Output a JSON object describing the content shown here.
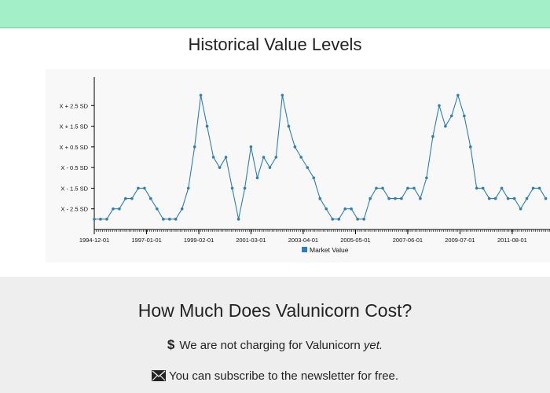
{
  "colors": {
    "topbar": "#a3f0c8",
    "series": "#2d7fb8",
    "gray_band": "#eeeeee"
  },
  "chart_section": {
    "title": "Historical Value Levels"
  },
  "chart_data": {
    "type": "line",
    "title": "Historical Value Levels",
    "y_tick_labels": [
      "X - 2.5 SD",
      "X - 1.5 SD",
      "X - 0.5 SD",
      "X + 0.5 SD",
      "X + 1.5 SD",
      "X + 2.5 SD"
    ],
    "y_tick_values": [
      -2.5,
      -1.5,
      -0.5,
      0.5,
      1.5,
      2.5
    ],
    "x_tick_labels": [
      "1994-12-01",
      "1997-01-01",
      "1999-02-01",
      "2001-03-01",
      "2003-04-01",
      "2005-05-01",
      "2007-06-01",
      "2009-07-01",
      "2011-08-01"
    ],
    "legend": [
      "Market Value"
    ],
    "legend_position": "bottom",
    "series": [
      {
        "name": "Market Value",
        "points": [
          [
            "1994-12-01",
            -3.0
          ],
          [
            "1995-03-01",
            -3.0
          ],
          [
            "1995-06-01",
            -3.0
          ],
          [
            "1995-09-01",
            -2.5
          ],
          [
            "1995-12-01",
            -2.5
          ],
          [
            "1996-03-01",
            -2.0
          ],
          [
            "1996-06-01",
            -2.0
          ],
          [
            "1996-09-01",
            -1.5
          ],
          [
            "1996-12-01",
            -1.5
          ],
          [
            "1997-03-01",
            -2.0
          ],
          [
            "1997-06-01",
            -2.5
          ],
          [
            "1997-09-01",
            -3.0
          ],
          [
            "1997-12-01",
            -3.0
          ],
          [
            "1998-03-01",
            -3.0
          ],
          [
            "1998-06-01",
            -2.5
          ],
          [
            "1998-09-01",
            -1.5
          ],
          [
            "1998-12-01",
            0.5
          ],
          [
            "1999-03-01",
            3.0
          ],
          [
            "1999-06-01",
            1.5
          ],
          [
            "1999-09-01",
            0.0
          ],
          [
            "1999-12-01",
            -0.5
          ],
          [
            "2000-03-01",
            0.0
          ],
          [
            "2000-06-01",
            -1.5
          ],
          [
            "2000-09-01",
            -3.0
          ],
          [
            "2000-12-01",
            -1.5
          ],
          [
            "2001-03-01",
            0.5
          ],
          [
            "2001-06-01",
            -1.0
          ],
          [
            "2001-09-01",
            0.0
          ],
          [
            "2001-12-01",
            -0.5
          ],
          [
            "2002-03-01",
            0.0
          ],
          [
            "2002-06-01",
            3.0
          ],
          [
            "2002-09-01",
            1.5
          ],
          [
            "2002-12-01",
            0.5
          ],
          [
            "2003-03-01",
            0.0
          ],
          [
            "2003-06-01",
            -0.5
          ],
          [
            "2003-09-01",
            -1.0
          ],
          [
            "2003-12-01",
            -2.0
          ],
          [
            "2004-03-01",
            -2.5
          ],
          [
            "2004-06-01",
            -3.0
          ],
          [
            "2004-09-01",
            -3.0
          ],
          [
            "2004-12-01",
            -2.5
          ],
          [
            "2005-03-01",
            -2.5
          ],
          [
            "2005-06-01",
            -3.0
          ],
          [
            "2005-09-01",
            -3.0
          ],
          [
            "2005-12-01",
            -2.0
          ],
          [
            "2006-03-01",
            -1.5
          ],
          [
            "2006-06-01",
            -1.5
          ],
          [
            "2006-09-01",
            -2.0
          ],
          [
            "2006-12-01",
            -2.0
          ],
          [
            "2007-03-01",
            -2.0
          ],
          [
            "2007-06-01",
            -1.5
          ],
          [
            "2007-09-01",
            -1.5
          ],
          [
            "2007-12-01",
            -2.0
          ],
          [
            "2008-03-01",
            -1.0
          ],
          [
            "2008-06-01",
            1.0
          ],
          [
            "2008-09-01",
            2.5
          ],
          [
            "2008-12-01",
            1.5
          ],
          [
            "2009-03-01",
            2.0
          ],
          [
            "2009-06-01",
            3.0
          ],
          [
            "2009-09-01",
            2.0
          ],
          [
            "2009-12-01",
            0.5
          ],
          [
            "2010-03-01",
            -1.5
          ],
          [
            "2010-06-01",
            -1.5
          ],
          [
            "2010-09-01",
            -2.0
          ],
          [
            "2010-12-01",
            -2.0
          ],
          [
            "2011-03-01",
            -1.5
          ],
          [
            "2011-06-01",
            -2.0
          ],
          [
            "2011-09-01",
            -2.0
          ],
          [
            "2011-12-01",
            -2.5
          ],
          [
            "2012-03-01",
            -2.0
          ],
          [
            "2012-06-01",
            -1.5
          ],
          [
            "2012-09-01",
            -1.5
          ],
          [
            "2012-12-01",
            -2.0
          ]
        ]
      }
    ]
  },
  "cost_section": {
    "title": "How Much Does Valunicorn Cost?",
    "line1_prefix": "We are not charging for Valunicorn ",
    "line1_emphasis": "yet.",
    "line2_text": "You can subscribe to the newsletter for free."
  }
}
